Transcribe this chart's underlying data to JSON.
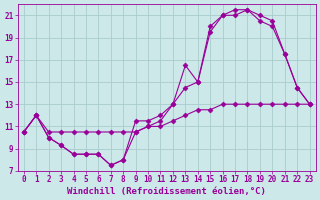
{
  "background_color": "#cce8e8",
  "grid_color": "#aacccc",
  "line_color": "#990099",
  "xlim": [
    -0.5,
    23.5
  ],
  "ylim": [
    7,
    22
  ],
  "yticks": [
    7,
    9,
    11,
    13,
    15,
    17,
    19,
    21
  ],
  "xticks": [
    0,
    1,
    2,
    3,
    4,
    5,
    6,
    7,
    8,
    9,
    10,
    11,
    12,
    13,
    14,
    15,
    16,
    17,
    18,
    19,
    20,
    21,
    22,
    23
  ],
  "xlabel": "Windchill (Refroidissement éolien,°C)",
  "xlabel_fontsize": 6.5,
  "tick_fontsize": 5.5,
  "line1_x": [
    0,
    1,
    2,
    3,
    4,
    5,
    6,
    7,
    8,
    9,
    10,
    11,
    12,
    13,
    14,
    15,
    16,
    17,
    18,
    19,
    20,
    21,
    22,
    23
  ],
  "line1_y": [
    10.5,
    12.0,
    10.0,
    9.3,
    8.5,
    8.5,
    8.5,
    7.5,
    8.0,
    10.5,
    11.0,
    11.5,
    13.0,
    14.5,
    15.0,
    19.5,
    21.0,
    21.0,
    21.5,
    21.0,
    20.5,
    17.5,
    14.5,
    13.0
  ],
  "line2_x": [
    0,
    1,
    2,
    3,
    4,
    5,
    6,
    7,
    8,
    9,
    10,
    11,
    12,
    13,
    14,
    15,
    16,
    17,
    18,
    19,
    20,
    21,
    22,
    23
  ],
  "line2_y": [
    10.5,
    12.0,
    10.0,
    9.3,
    8.5,
    8.5,
    8.5,
    7.5,
    8.0,
    11.5,
    11.5,
    12.0,
    13.0,
    16.5,
    15.0,
    20.0,
    21.0,
    21.5,
    21.5,
    20.5,
    20.0,
    17.5,
    14.5,
    13.0
  ],
  "line3_x": [
    0,
    1,
    2,
    3,
    4,
    5,
    6,
    7,
    8,
    9,
    10,
    11,
    12,
    13,
    14,
    15,
    16,
    17,
    18,
    19,
    20,
    21,
    22,
    23
  ],
  "line3_y": [
    10.5,
    12.0,
    10.5,
    10.5,
    10.5,
    10.5,
    10.5,
    10.5,
    10.5,
    10.5,
    11.0,
    11.0,
    11.5,
    12.0,
    12.5,
    12.5,
    13.0,
    13.0,
    13.0,
    13.0,
    13.0,
    13.0,
    13.0,
    13.0
  ]
}
